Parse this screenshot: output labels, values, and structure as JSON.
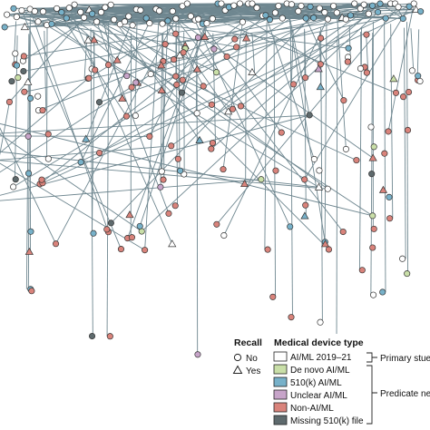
{
  "legend": {
    "recall": {
      "title": "Recall",
      "items": [
        {
          "label": "No",
          "shape": "circle"
        },
        {
          "label": "Yes",
          "shape": "triangle"
        }
      ]
    },
    "device_type": {
      "title": "Medical device type",
      "items": [
        {
          "label": "AI/ML 2019–21",
          "color": "#ffffff"
        },
        {
          "label": "De novo AI/ML",
          "color": "#c9dfa8"
        },
        {
          "label": "510(k) AI/ML",
          "color": "#77b1c9"
        },
        {
          "label": "Unclear AI/ML",
          "color": "#c7a4c9"
        },
        {
          "label": "Non-AI/ML",
          "color": "#d9837b"
        },
        {
          "label": "Missing 510(k) file",
          "color": "#5e6a6d"
        }
      ]
    },
    "groups": [
      {
        "label": "Primary stue",
        "covers": [
          "AI/ML 2019–21"
        ]
      },
      {
        "label": "Predicate ne",
        "covers": [
          "De novo AI/ML",
          "510(k) AI/ML",
          "Unclear AI/ML",
          "Non-AI/ML",
          "Missing 510(k) file"
        ]
      }
    ]
  },
  "colors": {
    "edge": "#6f8790",
    "node_stroke": "#333333",
    "AI/ML 2019–21": "#ffffff",
    "De novo AI/ML": "#c9dfa8",
    "510(k) AI/ML": "#77b1c9",
    "Unclear AI/ML": "#c7a4c9",
    "Non-AI/ML": "#d9837b",
    "Missing 510(k) file": "#5e6a6d"
  }
}
